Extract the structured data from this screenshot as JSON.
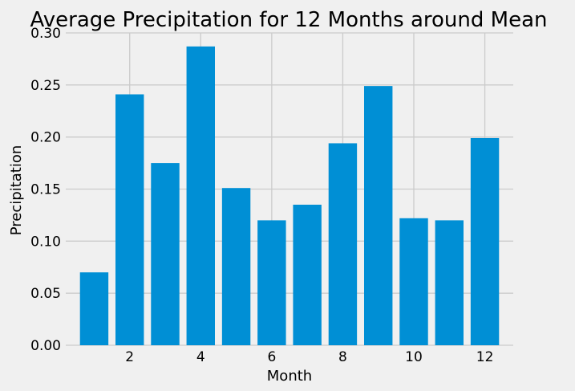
{
  "chart_data": {
    "type": "bar",
    "title": "Average Precipitation for 12 Months around Mean",
    "xlabel": "Month",
    "ylabel": "Precipitation",
    "categories": [
      1,
      2,
      3,
      4,
      5,
      6,
      7,
      8,
      9,
      10,
      11,
      12
    ],
    "values": [
      0.07,
      0.241,
      0.175,
      0.287,
      0.151,
      0.12,
      0.135,
      0.194,
      0.249,
      0.122,
      0.12,
      0.199
    ],
    "xlim": [
      0.2,
      12.8
    ],
    "ylim": [
      0,
      0.3
    ],
    "xticks": [
      2,
      4,
      6,
      8,
      10,
      12
    ],
    "xtick_labels": [
      "2",
      "4",
      "6",
      "8",
      "10",
      "12"
    ],
    "yticks": [
      0,
      0.05,
      0.1,
      0.15,
      0.2,
      0.25,
      0.3
    ],
    "ytick_labels": [
      "0.00",
      "0.05",
      "0.10",
      "0.15",
      "0.20",
      "0.25",
      "0.30"
    ],
    "grid": true,
    "bar_color": "#008fd5",
    "grid_color": "#cbcbcb",
    "background_color": "#f0f0f0"
  }
}
